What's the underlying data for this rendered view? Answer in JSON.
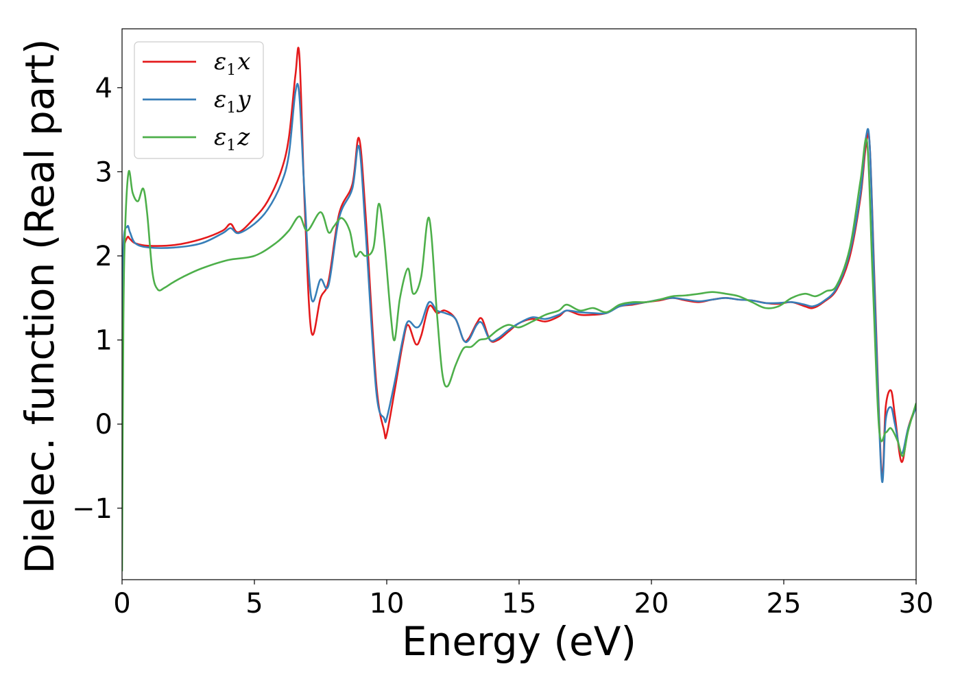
{
  "chart_data": {
    "type": "line",
    "xlabel": "Energy (eV)",
    "ylabel": "Dielec. function (Real part)",
    "xlim": [
      0,
      30
    ],
    "ylim": [
      -1.85,
      4.7
    ],
    "xticks": [
      0,
      5,
      10,
      15,
      20,
      25,
      30
    ],
    "xtick_labels": [
      "0",
      "5",
      "10",
      "15",
      "20",
      "25",
      "30"
    ],
    "yticks": [
      -1,
      0,
      1,
      2,
      3,
      4
    ],
    "ytick_labels": [
      "−1",
      "0",
      "1",
      "2",
      "3",
      "4"
    ],
    "grid": false,
    "legend_position": "top-left",
    "series": [
      {
        "name": "ε1x",
        "name_base": "ε",
        "name_sub": "1",
        "name_var": "x",
        "color": "#e41a1c",
        "x": [
          0,
          0.05,
          0.2,
          0.3,
          0.5,
          1.0,
          2.0,
          3.0,
          3.8,
          4.1,
          4.4,
          5.0,
          5.5,
          6.0,
          6.3,
          6.55,
          6.7,
          6.9,
          7.15,
          7.5,
          7.8,
          8.2,
          8.7,
          8.95,
          9.2,
          9.6,
          9.9,
          10.0,
          10.3,
          10.6,
          10.8,
          11.1,
          11.3,
          11.6,
          11.9,
          12.2,
          12.6,
          12.9,
          13.1,
          13.4,
          13.6,
          13.9,
          14.2,
          14.6,
          15.0,
          15.5,
          16.0,
          16.5,
          16.8,
          17.3,
          17.8,
          18.3,
          18.8,
          19.3,
          19.8,
          20.3,
          20.8,
          21.3,
          21.8,
          22.3,
          22.8,
          23.3,
          23.8,
          24.3,
          24.8,
          25.3,
          25.8,
          26.1,
          26.5,
          27.0,
          27.5,
          27.9,
          28.1,
          28.25,
          28.45,
          28.7,
          28.85,
          29.05,
          29.2,
          29.45,
          29.7,
          30.0
        ],
        "y": [
          1.5,
          2.05,
          2.22,
          2.2,
          2.15,
          2.12,
          2.13,
          2.2,
          2.3,
          2.38,
          2.28,
          2.45,
          2.65,
          3.0,
          3.4,
          4.15,
          4.38,
          2.6,
          1.1,
          1.5,
          1.7,
          2.5,
          2.85,
          3.4,
          2.5,
          0.5,
          -0.08,
          -0.12,
          0.4,
          0.95,
          1.18,
          0.95,
          1.05,
          1.4,
          1.32,
          1.35,
          1.25,
          1.0,
          1.02,
          1.2,
          1.25,
          1.0,
          1.0,
          1.1,
          1.2,
          1.25,
          1.22,
          1.28,
          1.35,
          1.3,
          1.3,
          1.32,
          1.4,
          1.42,
          1.45,
          1.47,
          1.5,
          1.47,
          1.45,
          1.48,
          1.5,
          1.48,
          1.47,
          1.44,
          1.43,
          1.45,
          1.4,
          1.38,
          1.45,
          1.6,
          2.0,
          2.7,
          3.3,
          3.3,
          1.5,
          -0.6,
          0.2,
          0.4,
          0.1,
          -0.45,
          -0.05,
          0.22
        ]
      },
      {
        "name": "ε1y",
        "name_base": "ε",
        "name_sub": "1",
        "name_var": "y",
        "color": "#377eb8",
        "x": [
          0,
          0.05,
          0.2,
          0.3,
          0.5,
          1.0,
          2.0,
          3.0,
          3.8,
          4.1,
          4.4,
          5.0,
          5.5,
          6.0,
          6.3,
          6.55,
          6.7,
          6.9,
          7.15,
          7.5,
          7.8,
          8.2,
          8.7,
          8.95,
          9.2,
          9.6,
          9.9,
          10.0,
          10.3,
          10.6,
          10.8,
          11.1,
          11.3,
          11.6,
          11.9,
          12.2,
          12.6,
          12.9,
          13.1,
          13.4,
          13.6,
          13.9,
          14.2,
          14.6,
          15.0,
          15.5,
          16.0,
          16.5,
          16.8,
          17.3,
          17.8,
          18.3,
          18.8,
          19.3,
          19.8,
          20.3,
          20.8,
          21.3,
          21.8,
          22.3,
          22.8,
          23.3,
          23.8,
          24.3,
          24.8,
          25.3,
          25.8,
          26.1,
          26.5,
          27.0,
          27.5,
          27.9,
          28.1,
          28.25,
          28.45,
          28.7,
          28.85,
          29.05,
          29.2,
          29.45,
          29.7,
          30.0
        ],
        "y": [
          0.55,
          2.1,
          2.35,
          2.28,
          2.15,
          2.1,
          2.1,
          2.15,
          2.27,
          2.33,
          2.27,
          2.38,
          2.55,
          2.85,
          3.2,
          3.95,
          3.9,
          2.7,
          1.5,
          1.72,
          1.65,
          2.45,
          2.8,
          3.3,
          2.3,
          0.4,
          0.07,
          0.07,
          0.5,
          1.0,
          1.22,
          1.15,
          1.2,
          1.45,
          1.35,
          1.32,
          1.25,
          1.0,
          1.0,
          1.18,
          1.2,
          1.0,
          1.02,
          1.12,
          1.2,
          1.27,
          1.25,
          1.3,
          1.35,
          1.33,
          1.32,
          1.32,
          1.4,
          1.43,
          1.45,
          1.48,
          1.5,
          1.48,
          1.46,
          1.48,
          1.5,
          1.48,
          1.47,
          1.44,
          1.44,
          1.45,
          1.42,
          1.4,
          1.46,
          1.62,
          2.05,
          2.75,
          3.4,
          3.3,
          1.4,
          -0.65,
          0.05,
          0.2,
          0.0,
          -0.35,
          -0.05,
          0.2
        ]
      },
      {
        "name": "ε1z",
        "name_base": "ε",
        "name_sub": "1",
        "name_var": "z",
        "color": "#4daf4a",
        "x": [
          0,
          0.05,
          0.12,
          0.25,
          0.4,
          0.6,
          0.8,
          0.95,
          1.15,
          1.35,
          1.6,
          1.9,
          2.3,
          3.0,
          4.0,
          5.0,
          5.8,
          6.3,
          6.7,
          7.0,
          7.5,
          7.8,
          8.0,
          8.3,
          8.6,
          8.8,
          9.0,
          9.2,
          9.5,
          9.7,
          9.9,
          10.15,
          10.3,
          10.5,
          10.8,
          11.0,
          11.3,
          11.6,
          11.9,
          12.1,
          12.3,
          12.6,
          12.9,
          13.2,
          13.5,
          13.8,
          14.2,
          14.6,
          15.0,
          15.5,
          16.0,
          16.5,
          16.8,
          17.3,
          17.8,
          18.3,
          18.8,
          19.3,
          19.8,
          20.3,
          20.8,
          21.3,
          21.8,
          22.3,
          22.8,
          23.3,
          23.8,
          24.3,
          24.8,
          25.3,
          25.8,
          26.2,
          26.6,
          27.0,
          27.5,
          27.9,
          28.15,
          28.35,
          28.6,
          28.85,
          29.05,
          29.3,
          29.5,
          29.7,
          30.0
        ],
        "y": [
          -1.75,
          1.2,
          2.35,
          3.0,
          2.75,
          2.65,
          2.8,
          2.5,
          1.8,
          1.6,
          1.62,
          1.68,
          1.75,
          1.85,
          1.95,
          2.0,
          2.15,
          2.3,
          2.47,
          2.3,
          2.52,
          2.28,
          2.35,
          2.45,
          2.3,
          2.0,
          2.05,
          2.0,
          2.1,
          2.62,
          2.2,
          1.3,
          1.0,
          1.5,
          1.85,
          1.55,
          1.75,
          2.45,
          1.3,
          0.6,
          0.45,
          0.7,
          0.9,
          0.92,
          1.0,
          1.02,
          1.12,
          1.18,
          1.15,
          1.22,
          1.3,
          1.35,
          1.42,
          1.35,
          1.38,
          1.33,
          1.42,
          1.45,
          1.45,
          1.48,
          1.52,
          1.53,
          1.55,
          1.57,
          1.55,
          1.52,
          1.45,
          1.38,
          1.4,
          1.5,
          1.55,
          1.52,
          1.58,
          1.65,
          2.1,
          2.9,
          3.35,
          1.8,
          -0.05,
          -0.1,
          -0.05,
          -0.2,
          -0.38,
          -0.08,
          0.25
        ]
      }
    ]
  }
}
